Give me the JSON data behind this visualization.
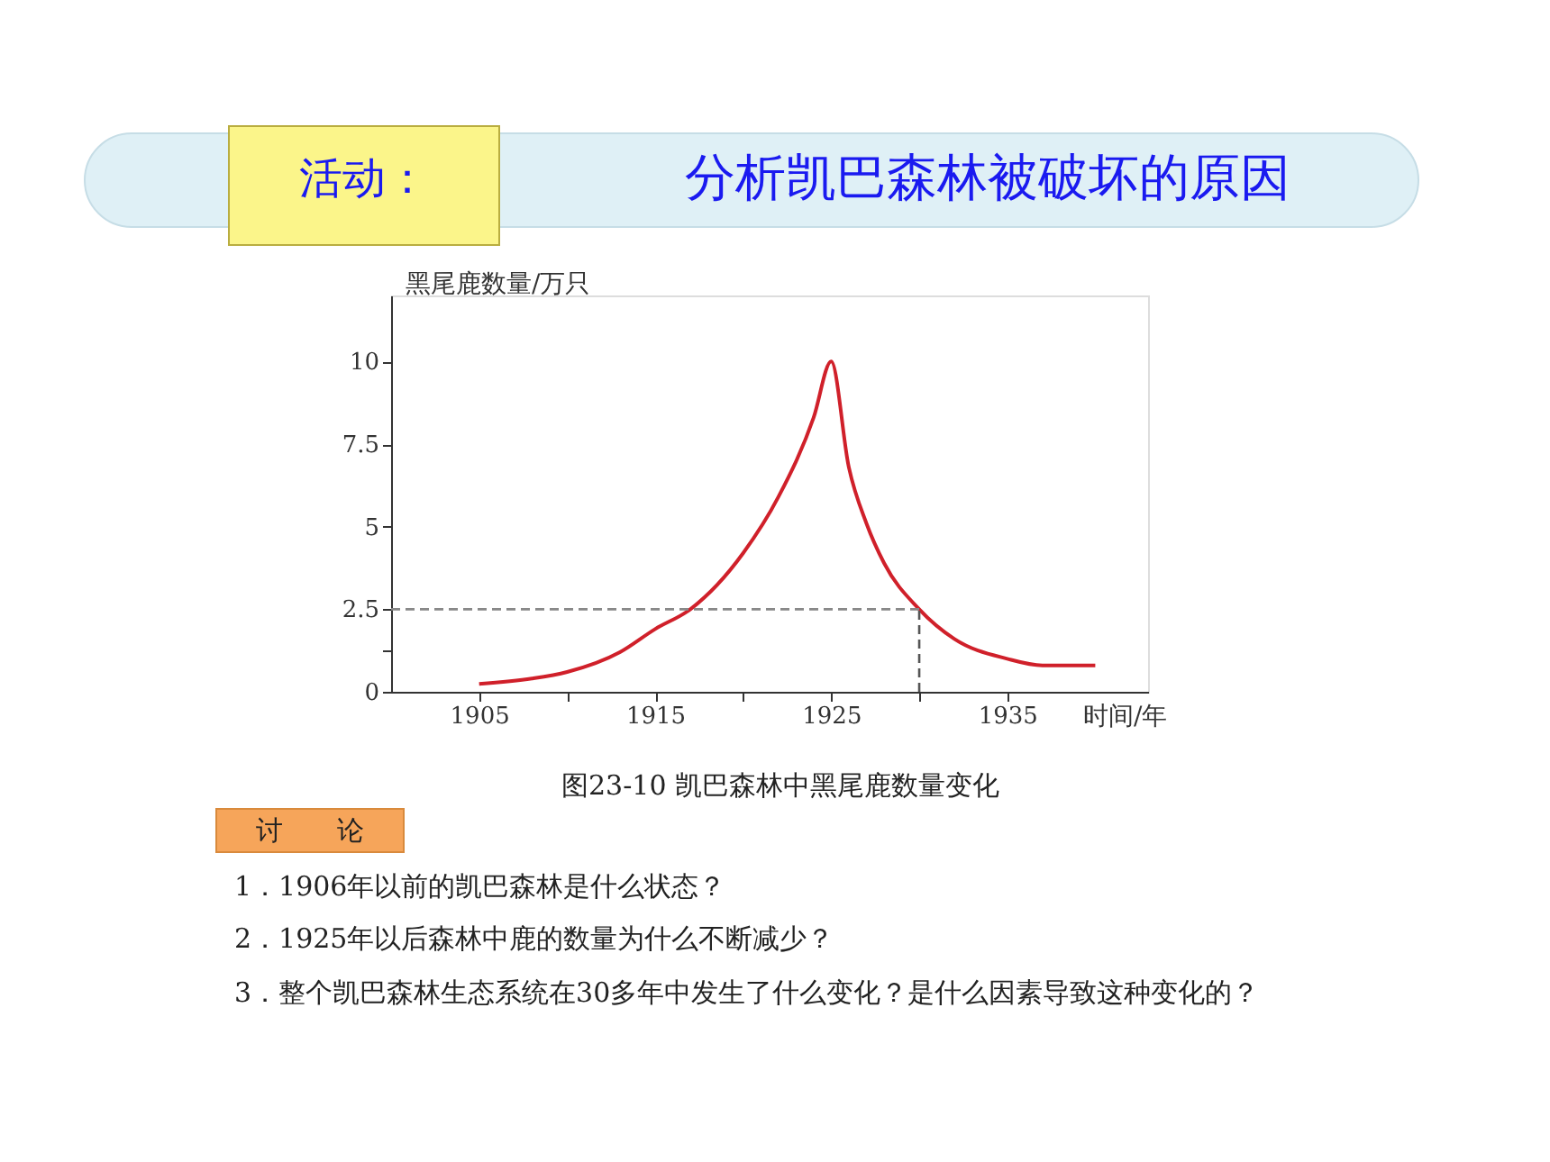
{
  "chart_data": {
    "type": "line",
    "title": "分析凯巴森林被破坏的原因",
    "xlabel": "时间/年",
    "ylabel": "黑尾鹿数量/万只",
    "annotations": [
      "活动：",
      "图23-10 凯巴森林中黑尾鹿数量变化",
      "讨　　论",
      "1．1906年以前的凯巴森林是什么状态？",
      "2．1925年以后森林中鹿的数量为什么不断减少？",
      "3．整个凯巴森林生态系统在30多年中发生了什么变化？是什么因素导致这种变化的？"
    ],
    "x": [
      1905,
      1908,
      1910,
      1913,
      1915,
      1917,
      1920,
      1922,
      1924,
      1925,
      1926,
      1927,
      1928,
      1930,
      1932,
      1935,
      1937,
      1940
    ],
    "series": [
      {
        "color": "#d0202a",
        "values": [
          0.24,
          0.4,
          0.6,
          1.2,
          1.9,
          2.5,
          4.2,
          5.9,
          8.3,
          10,
          6.8,
          5.1,
          3.9,
          2.5,
          1.6,
          1.0,
          0.8,
          0.8
        ]
      }
    ],
    "xlim": [
      1900,
      1943
    ],
    "ylim": [
      0,
      12
    ],
    "xticks": [
      1905,
      {
        "value": 1910,
        "label": null
      },
      1915,
      {
        "value": 1920,
        "label": null
      },
      1925,
      {
        "value": 1930,
        "label": null
      },
      1935
    ],
    "yticks": [
      0,
      {
        "value": 1.25,
        "label": null
      },
      2.5,
      5,
      7.5,
      10
    ],
    "ref_lines": [
      {
        "axis": "y",
        "value": 2.5,
        "color": "#888888",
        "line_style": "dashed"
      },
      {
        "axis": "x",
        "value": 1930,
        "color": "#555555",
        "line_style": "dashed"
      }
    ],
    "grid": false,
    "legend": false,
    "marker": "none",
    "line_style": "solid"
  }
}
